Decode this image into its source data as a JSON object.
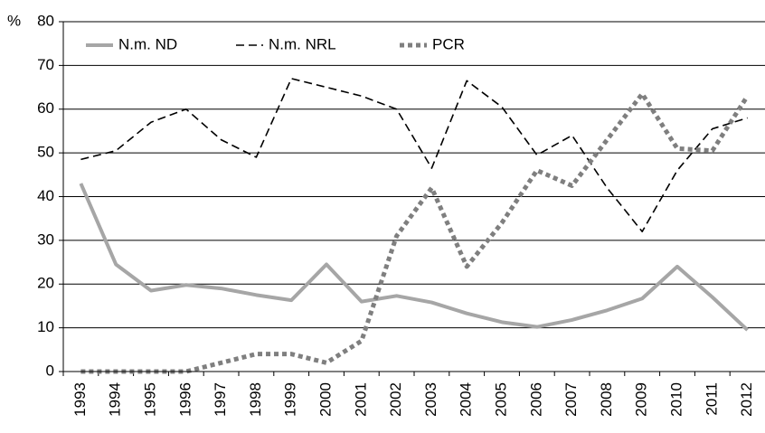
{
  "chart_data": {
    "type": "line",
    "ylabel": "%",
    "categories": [
      "1993",
      "1994",
      "1995",
      "1996",
      "1997",
      "1998",
      "1999",
      "2000",
      "2001",
      "2002",
      "2003",
      "2004",
      "2005",
      "2006",
      "2007",
      "2008",
      "2009",
      "2010",
      "2011",
      "2012"
    ],
    "series": [
      {
        "name": "N.m. ND",
        "color": "#a6a6a6",
        "style": "solid",
        "values": [
          43,
          24.5,
          18.5,
          19.8,
          19,
          17.5,
          16.3,
          24.5,
          16,
          17.3,
          15.8,
          13.3,
          11.3,
          10.2,
          11.8,
          14,
          16.7,
          24,
          17,
          9.5
        ]
      },
      {
        "name": "N.m. NRL",
        "color": "#000000",
        "style": "dashed",
        "values": [
          48.5,
          50.5,
          57,
          60,
          53,
          49,
          67,
          65,
          63,
          60,
          46.5,
          66.5,
          60.5,
          49.5,
          54,
          42,
          32,
          46,
          55.5,
          58
        ]
      },
      {
        "name": "PCR",
        "color": "#7f7f7f",
        "style": "dotted",
        "values": [
          0,
          0,
          0,
          0,
          2,
          4,
          4,
          2,
          7,
          31,
          42,
          24,
          34,
          46,
          42.5,
          53,
          63.5,
          51,
          50.5,
          63
        ]
      }
    ],
    "ylim": [
      0,
      80
    ],
    "yticks": [
      0,
      10,
      20,
      30,
      40,
      50,
      60,
      70,
      80
    ],
    "grid": true
  }
}
